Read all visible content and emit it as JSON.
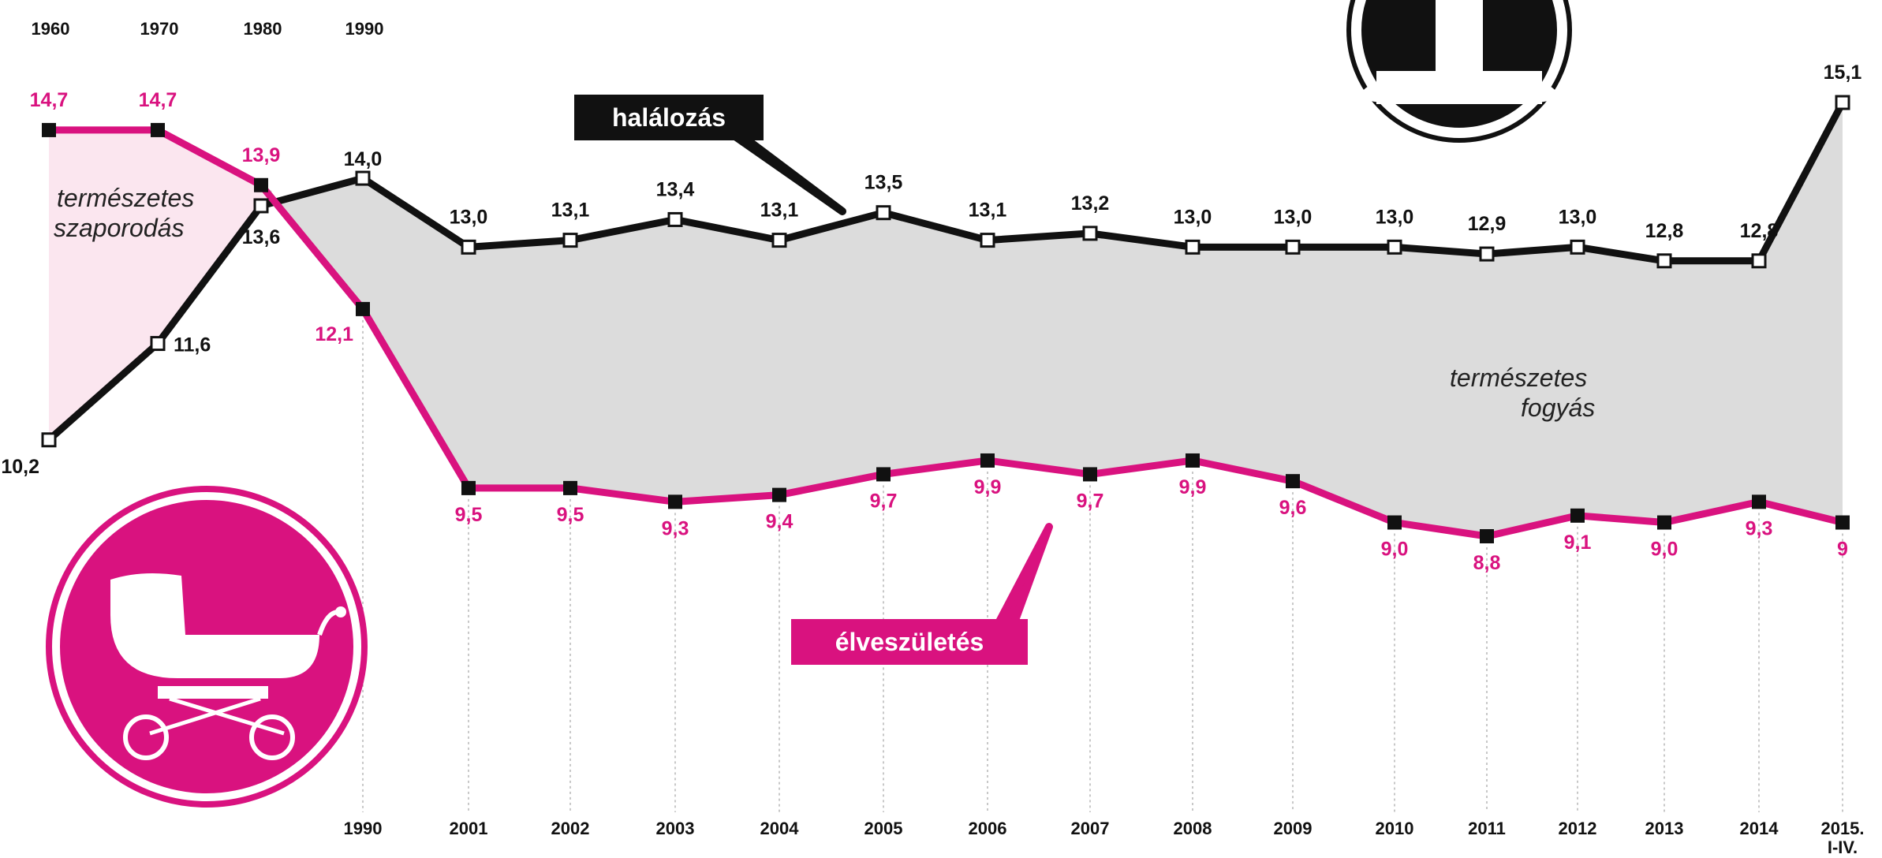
{
  "chart_data": {
    "type": "line",
    "x": [
      "1960",
      "1970",
      "1980",
      "1990",
      "2001",
      "2002",
      "2003",
      "2004",
      "2005",
      "2006",
      "2007",
      "2008",
      "2009",
      "2010",
      "2011",
      "2012",
      "2013",
      "2014",
      "2015. I-IV."
    ],
    "top_tick_labels": [
      "1960",
      "1970",
      "1980",
      "1990"
    ],
    "bottom_tick_labels": [
      "1990",
      "2001",
      "2002",
      "2003",
      "2004",
      "2005",
      "2006",
      "2007",
      "2008",
      "2009",
      "2010",
      "2011",
      "2012",
      "2013",
      "2014",
      "2015.",
      "I-IV."
    ],
    "series": [
      {
        "name": "halálozás",
        "color": "#111111",
        "values": [
          10.2,
          11.6,
          13.6,
          14.0,
          13.0,
          13.1,
          13.4,
          13.1,
          13.5,
          13.1,
          13.2,
          13.0,
          13.0,
          13.0,
          12.9,
          13.0,
          12.8,
          12.8,
          15.1
        ],
        "value_labels": [
          "10,2",
          "11,6",
          "13,6",
          "14,0",
          "13,0",
          "13,1",
          "13,4",
          "13,1",
          "13,5",
          "13,1",
          "13,2",
          "13,0",
          "13,0",
          "13,0",
          "12,9",
          "13,0",
          "12,8",
          "12,8",
          "15,1"
        ]
      },
      {
        "name": "élveszületés",
        "color": "#d9127f",
        "values": [
          14.7,
          14.7,
          13.9,
          12.1,
          9.5,
          9.5,
          9.3,
          9.4,
          9.7,
          9.9,
          9.7,
          9.9,
          9.6,
          9.0,
          8.8,
          9.1,
          9.0,
          9.3,
          9
        ],
        "value_labels": [
          "14,7",
          "14,7",
          "13,9",
          "12,1",
          "9,5",
          "9,5",
          "9,3",
          "9,4",
          "9,7",
          "9,9",
          "9,7",
          "9,9",
          "9,6",
          "9,0",
          "8,8",
          "9,1",
          "9,0",
          "9,3",
          "9"
        ]
      }
    ],
    "annotations": {
      "increase_region": [
        "természetes",
        "szaporodás"
      ],
      "decrease_region": [
        "természetes",
        "fogyás"
      ]
    },
    "colors": {
      "deaths": "#111111",
      "births": "#d9127f",
      "decrease_fill": "#dcdcdc",
      "increase_fill": "#fbe6ef"
    },
    "icons": {
      "births": "baby-carriage-icon",
      "deaths": "grave-icon"
    }
  }
}
